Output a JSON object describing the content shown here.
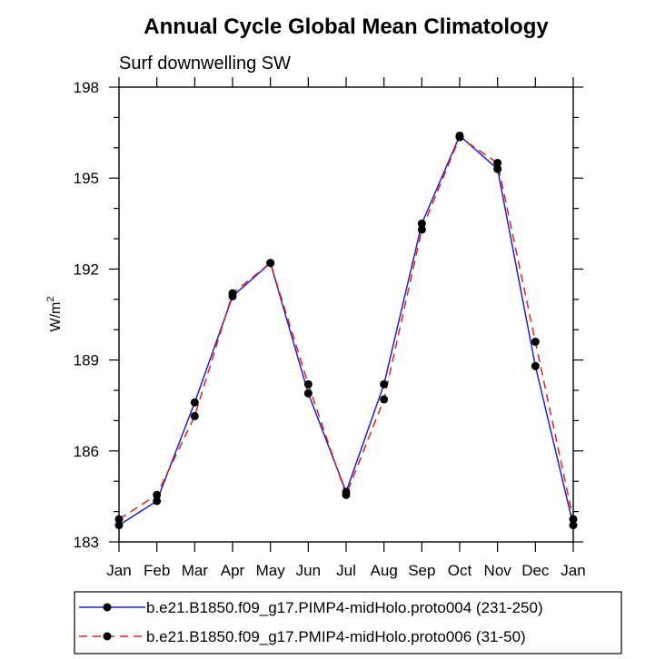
{
  "chart_data": {
    "type": "line",
    "title": "Annual Cycle Global Mean Climatology",
    "subtitle": "Surf downwelling SW",
    "ylabel": "W/m",
    "ylabel_sup": "2",
    "xlabel": "",
    "categories": [
      "Jan",
      "Feb",
      "Mar",
      "Apr",
      "May",
      "Jun",
      "Jul",
      "Aug",
      "Sep",
      "Oct",
      "Nov",
      "Dec",
      "Jan"
    ],
    "ylim": [
      183,
      198
    ],
    "yticks": [
      183,
      186,
      189,
      192,
      195,
      198
    ],
    "series": [
      {
        "name": "b.e21.B1850.f09_g17.PIMP4-midHolo.proto004 (231-250)",
        "color": "#1f1fcc",
        "dash": "solid",
        "values": [
          183.55,
          184.35,
          187.6,
          191.1,
          192.2,
          187.9,
          184.65,
          188.2,
          193.5,
          196.4,
          195.3,
          188.8,
          183.55
        ]
      },
      {
        "name": "b.e21.B1850.f09_g17.PMIP4-midHolo.proto006 (31-50)",
        "color": "#e02020",
        "dash": "dashed",
        "values": [
          183.75,
          184.55,
          187.15,
          191.2,
          192.2,
          188.2,
          184.55,
          187.7,
          193.3,
          196.35,
          195.5,
          189.6,
          183.75
        ]
      }
    ],
    "legend_position": "bottom"
  }
}
